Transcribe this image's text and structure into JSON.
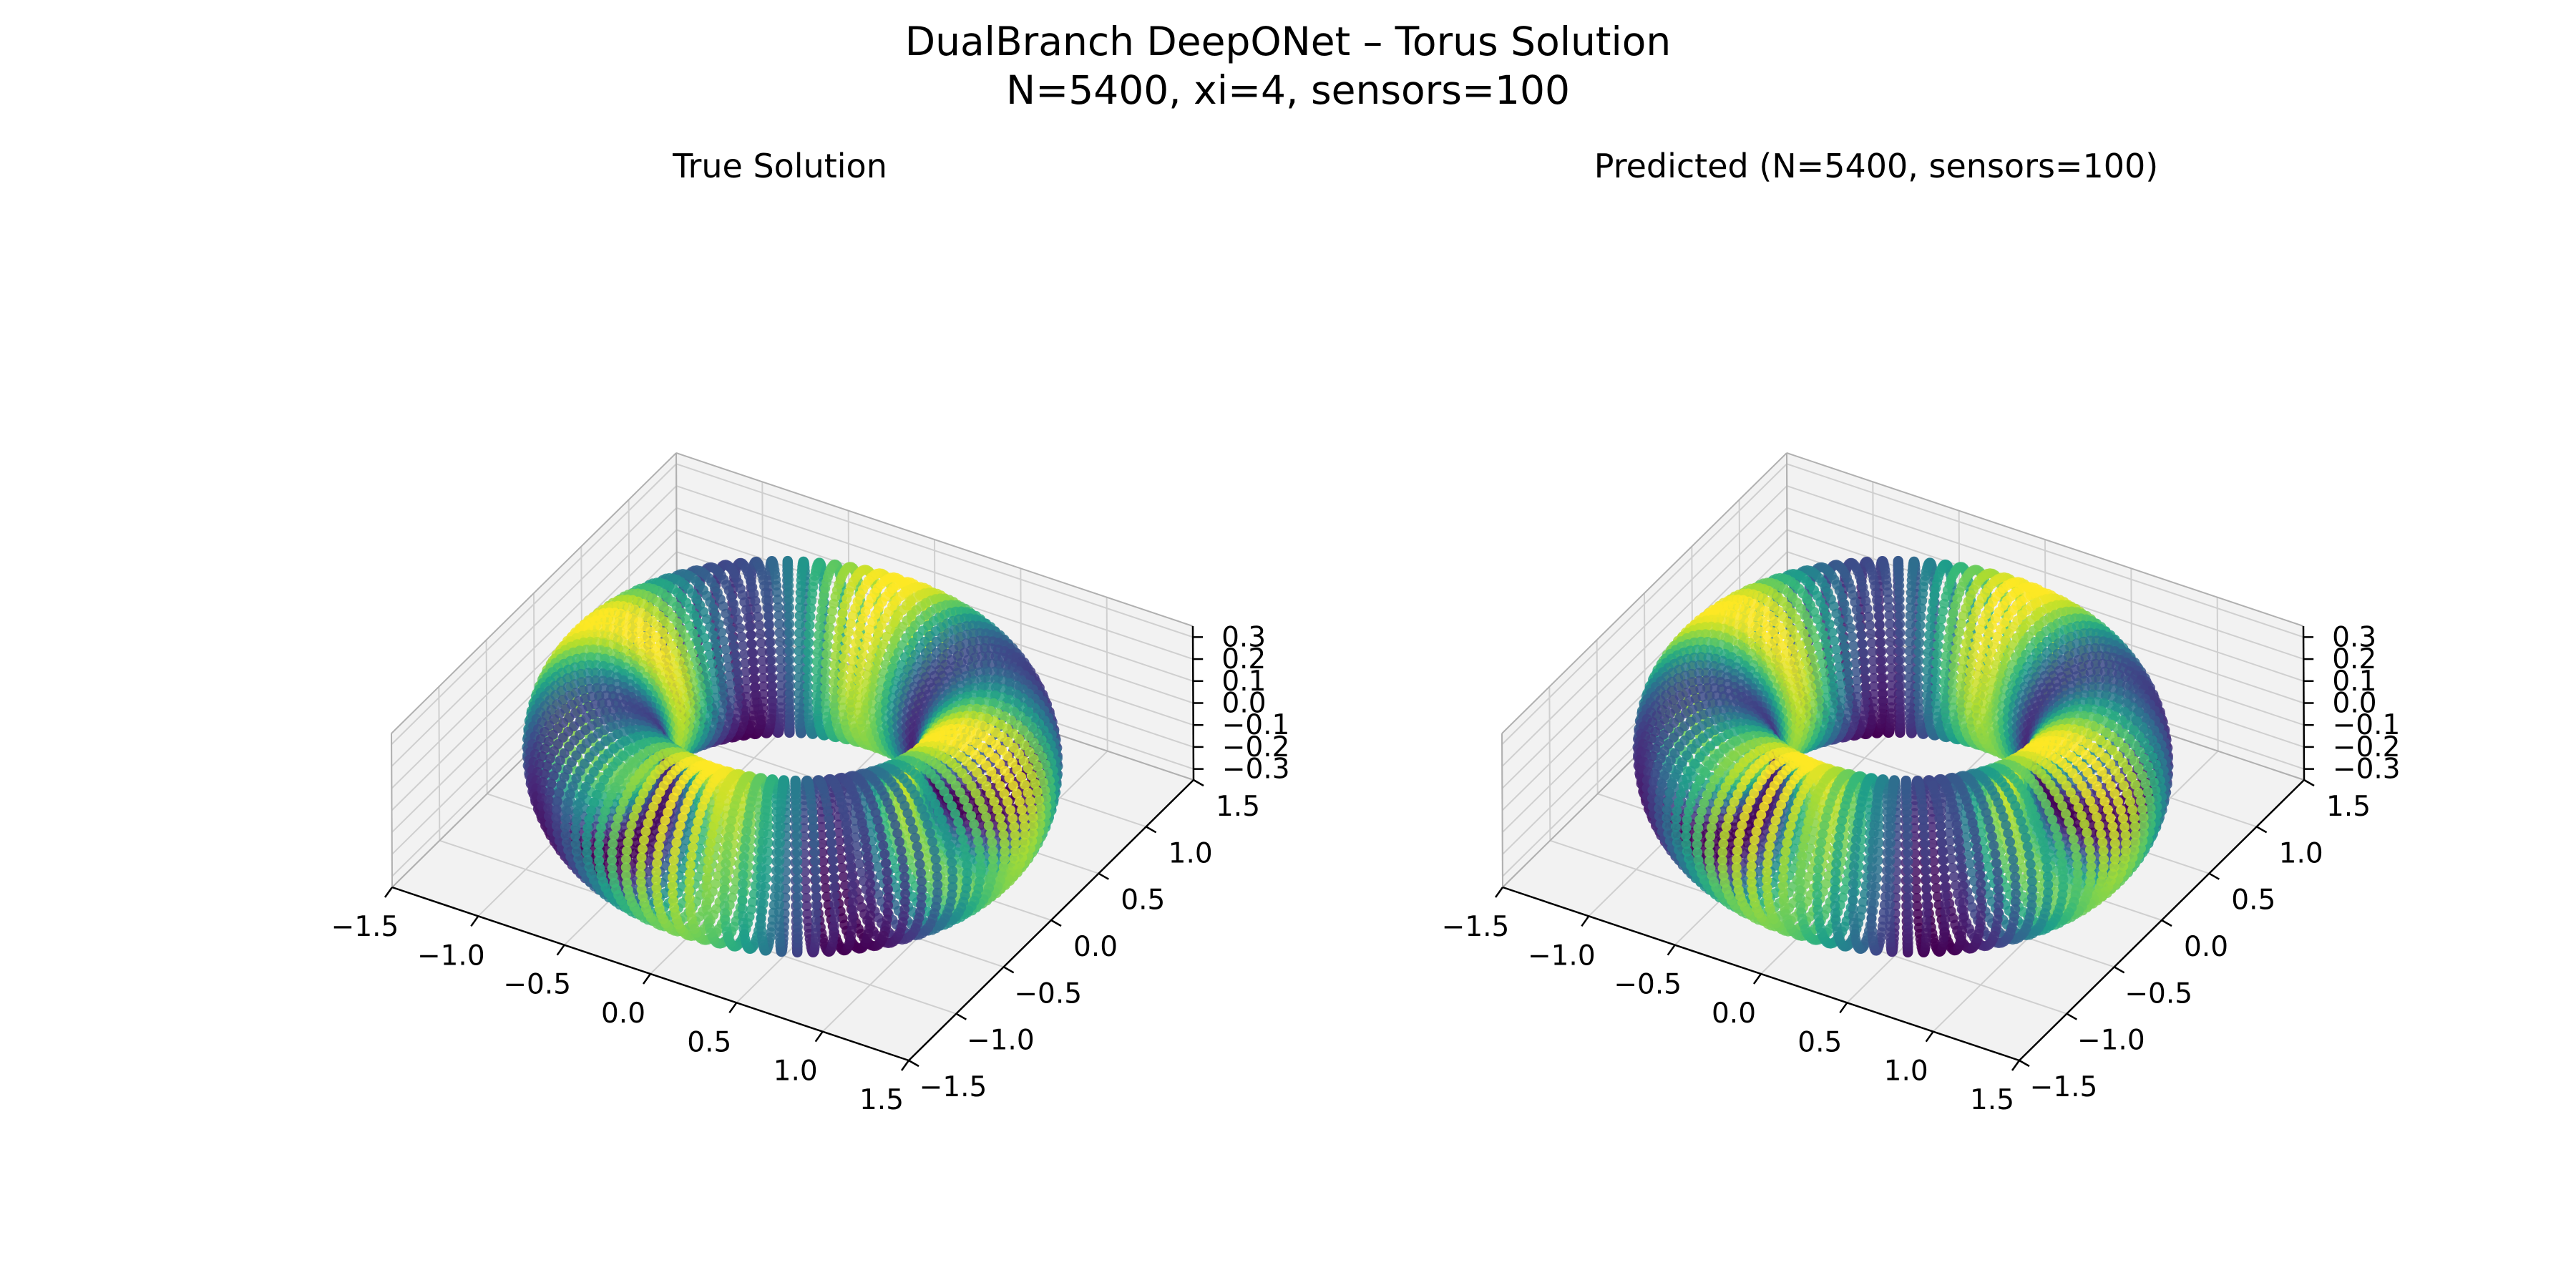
{
  "figure": {
    "title_line1": "DualBranch DeepONet – Torus Solution",
    "title_line2": "N=5400, xi=4, sensors=100"
  },
  "chart_data": [
    {
      "type": "scatter",
      "projection": "3d",
      "title": "True Solution",
      "surface": "torus",
      "surface_params": {
        "R": 1.0,
        "r": 0.35
      },
      "point_count": 5400,
      "colormap": "viridis",
      "color_range": [
        -1,
        1
      ],
      "xlim": [
        -1.5,
        1.5
      ],
      "ylim": [
        -1.5,
        1.5
      ],
      "zlim": [
        -0.35,
        0.35
      ],
      "x_ticks": [
        "−1.5",
        "−1.0",
        "−0.5",
        "0.0",
        "0.5",
        "1.0",
        "1.5"
      ],
      "y_ticks": [
        "−1.5",
        "−1.0",
        "−0.5",
        "0.0",
        "0.5",
        "1.0",
        "1.5"
      ],
      "z_ticks": [
        "−0.3",
        "−0.2",
        "−0.1",
        "0.0",
        "0.1",
        "0.2",
        "0.3"
      ],
      "grid": true,
      "xlabel": "",
      "ylabel": "",
      "zlabel": ""
    },
    {
      "type": "scatter",
      "projection": "3d",
      "title": "Predicted (N=5400, sensors=100)",
      "surface": "torus",
      "surface_params": {
        "R": 1.0,
        "r": 0.35
      },
      "point_count": 5400,
      "colormap": "viridis",
      "color_range": [
        -1,
        1
      ],
      "xlim": [
        -1.5,
        1.5
      ],
      "ylim": [
        -1.5,
        1.5
      ],
      "zlim": [
        -0.35,
        0.35
      ],
      "x_ticks": [
        "−1.5",
        "−1.0",
        "−0.5",
        "0.0",
        "0.5",
        "1.0",
        "1.5"
      ],
      "y_ticks": [
        "−1.5",
        "−1.0",
        "−0.5",
        "0.0",
        "0.5",
        "1.0",
        "1.5"
      ],
      "z_ticks": [
        "−0.3",
        "−0.2",
        "−0.1",
        "0.0",
        "0.1",
        "0.2",
        "0.3"
      ],
      "grid": true,
      "xlabel": "",
      "ylabel": "",
      "zlabel": ""
    }
  ]
}
